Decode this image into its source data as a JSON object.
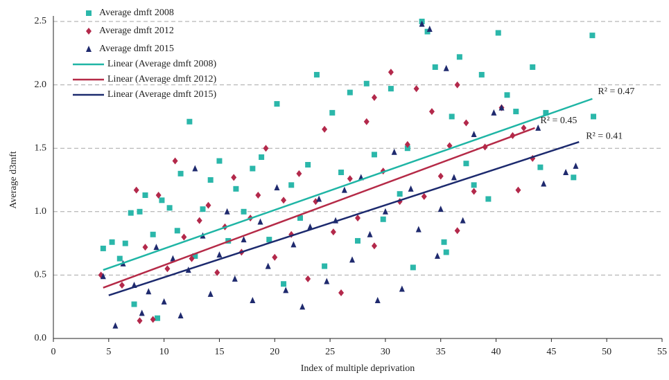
{
  "chart_data": {
    "type": "scatter",
    "x_label": "Index of multiple deprivation",
    "y_label": "Average d3mft",
    "xlim": [
      0,
      55
    ],
    "ylim": [
      0,
      2.5
    ],
    "xticks": [
      0,
      5,
      10,
      15,
      20,
      25,
      30,
      35,
      40,
      45,
      50,
      55
    ],
    "yticks": [
      {
        "value": 0,
        "label": "0.0"
      },
      0.5,
      {
        "value": 1,
        "label": "1.0"
      },
      1.5,
      {
        "value": 2,
        "label": "2.0"
      },
      2.5
    ],
    "grid": true,
    "legend": "upper left",
    "series": [
      {
        "name": "Average dmft 2008",
        "color": "#2bb7aa",
        "marker": "square",
        "x": [
          4.5,
          5.3,
          6,
          6.5,
          7,
          7.3,
          7.8,
          8.3,
          9,
          9.4,
          9.8,
          10.5,
          11.2,
          11.5,
          12.3,
          12.8,
          13.5,
          14.2,
          15,
          15.8,
          16.5,
          17.2,
          18,
          18.8,
          19.5,
          20.2,
          20.8,
          21.5,
          22.3,
          23,
          23.8,
          24.5,
          25.2,
          26,
          26.8,
          27.5,
          28.3,
          29,
          29.8,
          30.5,
          31.3,
          32,
          32.5,
          33.3,
          33.8,
          34.5,
          35.3,
          36,
          36.7,
          37.3,
          38,
          38.7,
          39.3,
          40.2,
          41,
          41.8,
          43.3,
          44.5,
          47,
          48.7,
          48.8,
          44,
          35.5
        ],
        "values": [
          0.71,
          0.76,
          0.63,
          0.75,
          0.99,
          0.27,
          1.0,
          1.13,
          0.82,
          0.16,
          1.09,
          1.03,
          0.85,
          1.3,
          1.71,
          0.65,
          1.02,
          1.25,
          1.4,
          0.77,
          1.18,
          1.0,
          1.34,
          1.43,
          0.78,
          1.85,
          0.43,
          1.21,
          0.95,
          1.37,
          2.08,
          0.57,
          1.78,
          1.31,
          1.94,
          0.77,
          2.01,
          1.45,
          0.94,
          1.97,
          1.14,
          1.5,
          0.56,
          2.5,
          2.42,
          2.14,
          0.76,
          1.75,
          2.22,
          1.38,
          1.21,
          2.08,
          1.1,
          2.41,
          1.92,
          1.79,
          2.14,
          1.78,
          1.27,
          2.39,
          1.75,
          1.35,
          0.68
        ]
      },
      {
        "name": "Average dmft 2012",
        "color": "#b3294b",
        "marker": "diamond",
        "x": [
          4.3,
          6.2,
          7.5,
          7.8,
          8.3,
          9,
          9.5,
          10.3,
          11,
          11.8,
          12.5,
          13.2,
          14,
          14.8,
          15.5,
          16.3,
          17,
          17.8,
          18.5,
          19.2,
          20,
          20.8,
          21.5,
          22.2,
          23,
          23.7,
          24.5,
          25.3,
          26,
          26.8,
          27.5,
          28.3,
          29,
          29.8,
          30.5,
          31.3,
          32,
          32.8,
          33.5,
          34.2,
          35,
          35.8,
          36.5,
          37.3,
          38,
          39,
          40.5,
          41.5,
          42.5,
          43.3,
          42,
          36.5,
          29
        ],
        "values": [
          0.5,
          0.42,
          1.17,
          0.14,
          0.72,
          0.15,
          1.13,
          0.55,
          1.4,
          0.8,
          0.63,
          0.93,
          1.05,
          0.52,
          0.88,
          1.27,
          0.68,
          0.95,
          1.13,
          1.5,
          0.64,
          1.09,
          0.82,
          1.3,
          0.47,
          1.08,
          1.65,
          0.84,
          0.36,
          1.26,
          0.95,
          1.71,
          0.73,
          1.32,
          2.1,
          1.08,
          1.53,
          1.97,
          1.12,
          1.79,
          1.28,
          1.52,
          2.0,
          1.7,
          1.16,
          1.51,
          1.82,
          1.6,
          1.66,
          1.42,
          1.17,
          0.85,
          1.9
        ]
      },
      {
        "name": "Average dmft 2015",
        "color": "#1f2a6e",
        "marker": "triangle",
        "x": [
          4.5,
          5.6,
          6.3,
          7.3,
          8,
          8.6,
          9.3,
          10,
          10.8,
          11.5,
          12.2,
          12.8,
          13.5,
          14.2,
          15,
          15.7,
          16.4,
          17.2,
          18,
          18.7,
          19.4,
          20.2,
          21,
          21.7,
          22.5,
          23.2,
          24,
          24.7,
          25.5,
          26.3,
          27,
          27.8,
          28.6,
          29.3,
          30,
          30.8,
          31.5,
          32.3,
          33,
          33.3,
          34,
          34.7,
          35.5,
          36.2,
          37,
          38,
          39.8,
          40.5,
          43.8,
          44.3,
          46.3,
          47.2,
          35
        ],
        "values": [
          0.49,
          0.1,
          0.59,
          0.42,
          0.2,
          0.37,
          0.72,
          0.29,
          0.63,
          0.18,
          0.54,
          1.34,
          0.81,
          0.35,
          0.66,
          1.0,
          0.47,
          0.78,
          0.3,
          0.92,
          0.57,
          1.19,
          0.38,
          0.74,
          0.25,
          0.88,
          1.1,
          0.45,
          0.93,
          1.17,
          0.62,
          1.27,
          0.82,
          0.3,
          1.0,
          1.47,
          0.39,
          1.18,
          0.86,
          2.48,
          2.44,
          0.65,
          2.13,
          1.27,
          0.93,
          1.61,
          1.78,
          1.82,
          1.66,
          1.22,
          1.31,
          1.36,
          1.02
        ]
      }
    ],
    "trendlines": [
      {
        "name": "Linear (Average dmft 2008)",
        "color": "#1fb5a5",
        "x": [
          4.5,
          48.7
        ],
        "values": [
          0.54,
          1.89
        ],
        "label": "R² = 0.47"
      },
      {
        "name": "Linear (Average dmft 2012)",
        "color": "#b52a47",
        "x": [
          4.5,
          43.5
        ],
        "values": [
          0.4,
          1.66
        ],
        "label": "R² = 0.45"
      },
      {
        "name": "Linear (Average dmft 2015)",
        "color": "#1c2a6e",
        "x": [
          5,
          47.5
        ],
        "values": [
          0.34,
          1.55
        ],
        "label": "R² = 0.41"
      }
    ]
  }
}
